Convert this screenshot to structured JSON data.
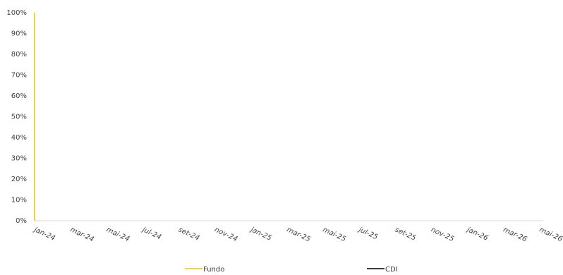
{
  "chart_data": {
    "type": "line",
    "categories": [
      "jan-24",
      "mar-24",
      "mai-24",
      "jul-24",
      "set-24",
      "nov-24",
      "jan-25",
      "mar-25",
      "mai-25",
      "jul-25",
      "set-25",
      "nov-25",
      "jan-26",
      "mar-26",
      "mai-26"
    ],
    "series": [
      {
        "name": "Fundo",
        "color": "#f2c200",
        "values": [
          null,
          null,
          null,
          null,
          null,
          null,
          null,
          null,
          null,
          null,
          null,
          null,
          null,
          null,
          null
        ]
      },
      {
        "name": "CDI",
        "color": "#000000",
        "values": [
          null,
          null,
          null,
          null,
          null,
          null,
          null,
          null,
          null,
          null,
          null,
          null,
          null,
          null,
          null
        ]
      }
    ],
    "ylim": [
      0,
      100
    ],
    "yticks": [
      {
        "value": 0,
        "label": "0%"
      },
      {
        "value": 10,
        "label": "10%"
      },
      {
        "value": 20,
        "label": "20%"
      },
      {
        "value": 30,
        "label": "30%"
      },
      {
        "value": 40,
        "label": "40%"
      },
      {
        "value": 50,
        "label": "50%"
      },
      {
        "value": 60,
        "label": "60%"
      },
      {
        "value": 70,
        "label": "70%"
      },
      {
        "value": 80,
        "label": "80%"
      },
      {
        "value": 90,
        "label": "90%"
      },
      {
        "value": 100,
        "label": "100%"
      }
    ],
    "grid": false,
    "legend": "bottom"
  }
}
